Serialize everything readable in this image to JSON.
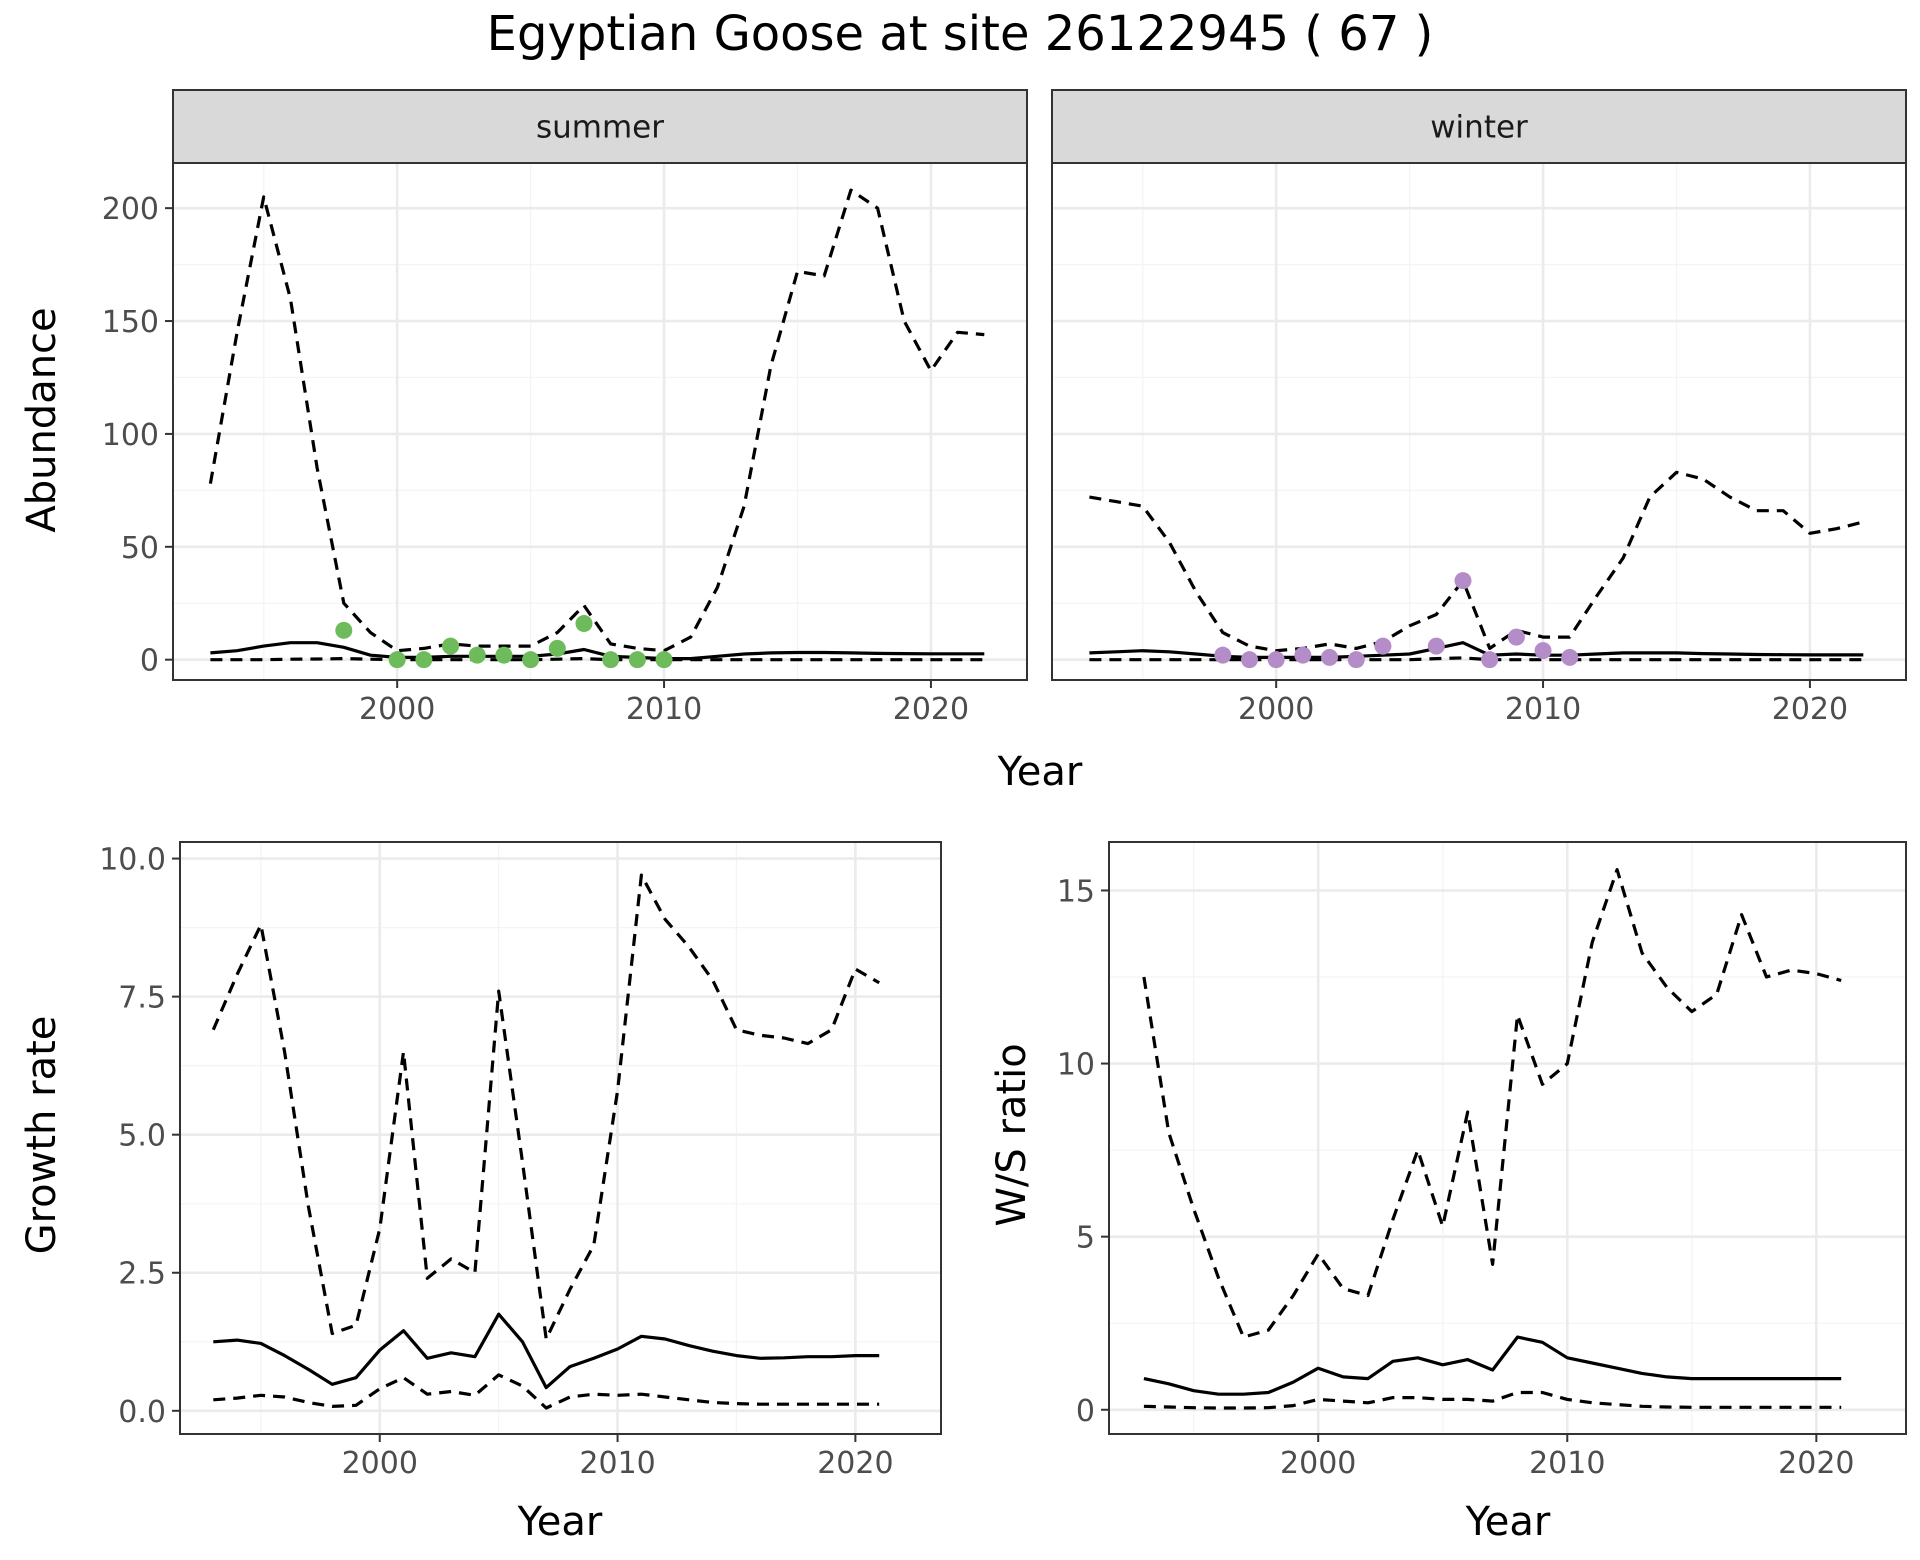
{
  "title": "Egyptian Goose at site 26122945 ( 67 )",
  "colors": {
    "summer_points": "#6dbb5a",
    "winter_points": "#b48cc8",
    "line": "#000000",
    "strip_bg": "#d9d9d9",
    "grid_major": "#ebebeb",
    "grid_minor": "#f4f4f4"
  },
  "chart_data": [
    {
      "type": "line",
      "panel": "summer",
      "facet_label": "summer",
      "xlabel": "Year",
      "ylabel": "Abundance",
      "xlim": [
        1991.6,
        2023.6
      ],
      "ylim": [
        -9,
        220
      ],
      "x_ticks": [
        2000,
        2010,
        2020
      ],
      "y_ticks": [
        0,
        50,
        100,
        150,
        200
      ],
      "grid": true,
      "points": {
        "x": [
          1998,
          2000,
          2001,
          2002,
          2003,
          2004,
          2005,
          2006,
          2007,
          2008,
          2009,
          2010
        ],
        "y": [
          13,
          0,
          0,
          6,
          2,
          2,
          0,
          5,
          16,
          0,
          0,
          0
        ]
      },
      "series": [
        {
          "style": "solid",
          "x": [
            1993,
            1994,
            1995,
            1996,
            1997,
            1998,
            1999,
            2000,
            2001,
            2002,
            2003,
            2004,
            2005,
            2006,
            2007,
            2008,
            2009,
            2010,
            2011,
            2012,
            2013,
            2014,
            2015,
            2016,
            2017,
            2018,
            2019,
            2020,
            2021,
            2022
          ],
          "y": [
            3,
            4,
            6,
            7.5,
            7.5,
            5.5,
            2,
            1,
            1,
            1.5,
            1.5,
            1.5,
            1.5,
            2.5,
            4.5,
            1.5,
            1,
            0.5,
            0.5,
            1.5,
            2.5,
            3,
            3.2,
            3.2,
            3,
            2.8,
            2.7,
            2.6,
            2.6,
            2.6
          ]
        },
        {
          "style": "dashed",
          "x": [
            1993,
            1994,
            1995,
            1996,
            1997,
            1998,
            1999,
            2000,
            2001,
            2002,
            2003,
            2004,
            2005,
            2006,
            2007,
            2008,
            2009,
            2010,
            2011,
            2012,
            2013,
            2014,
            2015,
            2016,
            2017,
            2018,
            2019,
            2020,
            2021,
            2022
          ],
          "y": [
            78,
            145,
            205,
            160,
            85,
            25,
            12,
            4,
            5,
            7,
            6,
            6,
            6,
            12,
            24,
            7,
            5,
            4,
            10,
            32,
            68,
            130,
            172,
            170,
            208,
            200,
            150,
            128,
            145,
            144
          ]
        },
        {
          "style": "dashed",
          "x": [
            1993,
            1994,
            1995,
            1996,
            1997,
            1998,
            1999,
            2000,
            2001,
            2002,
            2003,
            2004,
            2005,
            2006,
            2007,
            2008,
            2009,
            2010,
            2011,
            2012,
            2013,
            2014,
            2015,
            2016,
            2017,
            2018,
            2019,
            2020,
            2021,
            2022
          ],
          "y": [
            0,
            0,
            0,
            0.2,
            0.3,
            0.5,
            0.2,
            0,
            0,
            0,
            0,
            0,
            0,
            0.2,
            0.5,
            0,
            0,
            0,
            0,
            0,
            0,
            0,
            0,
            0,
            0,
            0,
            0,
            0,
            0,
            0
          ]
        }
      ]
    },
    {
      "type": "line",
      "panel": "winter",
      "facet_label": "winter",
      "xlabel": "Year",
      "ylabel": "Abundance",
      "xlim": [
        1991.6,
        2023.6
      ],
      "ylim": [
        -9,
        220
      ],
      "x_ticks": [
        2000,
        2010,
        2020
      ],
      "y_ticks": [
        0,
        50,
        100,
        150,
        200
      ],
      "grid": true,
      "points": {
        "x": [
          1998,
          1999,
          2000,
          2001,
          2002,
          2003,
          2004,
          2006,
          2007,
          2008,
          2009,
          2010,
          2011
        ],
        "y": [
          2,
          0,
          0,
          2,
          1,
          0,
          6,
          6,
          35,
          0,
          10,
          4,
          1
        ]
      },
      "series": [
        {
          "style": "solid",
          "x": [
            1993,
            1994,
            1995,
            1996,
            1997,
            1998,
            1999,
            2000,
            2001,
            2002,
            2003,
            2004,
            2005,
            2006,
            2007,
            2008,
            2009,
            2010,
            2011,
            2012,
            2013,
            2014,
            2015,
            2016,
            2017,
            2018,
            2019,
            2020,
            2021,
            2022
          ],
          "y": [
            3,
            3.5,
            4,
            3.5,
            2.5,
            1.5,
            1,
            1,
            1,
            1,
            1.5,
            2,
            2.5,
            5,
            7.5,
            2,
            2.5,
            2,
            2,
            2.5,
            3,
            3,
            3,
            2.7,
            2.5,
            2.3,
            2.2,
            2.1,
            2.1,
            2.1
          ]
        },
        {
          "style": "dashed",
          "x": [
            1993,
            1994,
            1995,
            1996,
            1997,
            1998,
            1999,
            2000,
            2001,
            2002,
            2003,
            2004,
            2005,
            2006,
            2007,
            2008,
            2009,
            2010,
            2011,
            2012,
            2013,
            2014,
            2015,
            2016,
            2017,
            2018,
            2019,
            2020,
            2021,
            2022
          ],
          "y": [
            72,
            70,
            68,
            52,
            30,
            12,
            6,
            4,
            5,
            7,
            5,
            8,
            15,
            20,
            35,
            5,
            13,
            10,
            10,
            28,
            45,
            72,
            83,
            80,
            72,
            66,
            66,
            56,
            58,
            61
          ]
        },
        {
          "style": "dashed",
          "x": [
            1993,
            1994,
            1995,
            1996,
            1997,
            1998,
            1999,
            2000,
            2001,
            2002,
            2003,
            2004,
            2005,
            2006,
            2007,
            2008,
            2009,
            2010,
            2011,
            2012,
            2013,
            2014,
            2015,
            2016,
            2017,
            2018,
            2019,
            2020,
            2021,
            2022
          ],
          "y": [
            0,
            0,
            0,
            0,
            0,
            0,
            0,
            0,
            0,
            0,
            0,
            0,
            0,
            0.5,
            0.8,
            0,
            0,
            0,
            0,
            0,
            0,
            0,
            0,
            0,
            0,
            0,
            0,
            0,
            0,
            0
          ]
        }
      ]
    },
    {
      "type": "line",
      "panel": "growth",
      "xlabel": "Year",
      "ylabel": "Growth rate",
      "xlim": [
        1991.6,
        2023.6
      ],
      "ylim": [
        -0.42,
        10.3
      ],
      "x_ticks": [
        2000,
        2010,
        2020
      ],
      "y_ticks": [
        0.0,
        2.5,
        5.0,
        7.5,
        10.0
      ],
      "y_tick_labels": [
        "0.0",
        "2.5",
        "5.0",
        "7.5",
        "10.0"
      ],
      "grid": true,
      "series": [
        {
          "style": "solid",
          "x": [
            1993,
            1994,
            1995,
            1996,
            1997,
            1998,
            1999,
            2000,
            2001,
            2002,
            2003,
            2004,
            2005,
            2006,
            2007,
            2008,
            2009,
            2010,
            2011,
            2012,
            2013,
            2014,
            2015,
            2016,
            2017,
            2018,
            2019,
            2020,
            2021
          ],
          "y": [
            1.25,
            1.28,
            1.22,
            1.0,
            0.75,
            0.48,
            0.6,
            1.1,
            1.45,
            0.95,
            1.05,
            0.98,
            1.75,
            1.25,
            0.42,
            0.8,
            0.95,
            1.12,
            1.35,
            1.3,
            1.18,
            1.08,
            1.0,
            0.95,
            0.96,
            0.98,
            0.98,
            1.0,
            1.0
          ]
        },
        {
          "style": "dashed",
          "x": [
            1993,
            1994,
            1995,
            1996,
            1997,
            1998,
            1999,
            2000,
            2001,
            2002,
            2003,
            2004,
            2005,
            2006,
            2007,
            2008,
            2009,
            2010,
            2011,
            2012,
            2013,
            2014,
            2015,
            2016,
            2017,
            2018,
            2019,
            2020,
            2021
          ],
          "y": [
            6.9,
            7.9,
            8.8,
            6.5,
            3.7,
            1.4,
            1.55,
            3.3,
            6.5,
            2.4,
            2.75,
            2.5,
            7.6,
            4.5,
            1.3,
            2.2,
            3.0,
            5.8,
            9.7,
            8.9,
            8.4,
            7.8,
            6.9,
            6.8,
            6.75,
            6.65,
            6.9,
            8.0,
            7.75
          ]
        },
        {
          "style": "dashed",
          "x": [
            1993,
            1994,
            1995,
            1996,
            1997,
            1998,
            1999,
            2000,
            2001,
            2002,
            2003,
            2004,
            2005,
            2006,
            2007,
            2008,
            2009,
            2010,
            2011,
            2012,
            2013,
            2014,
            2015,
            2016,
            2017,
            2018,
            2019,
            2020,
            2021
          ],
          "y": [
            0.2,
            0.23,
            0.28,
            0.25,
            0.15,
            0.08,
            0.1,
            0.4,
            0.6,
            0.3,
            0.35,
            0.28,
            0.65,
            0.45,
            0.05,
            0.25,
            0.3,
            0.28,
            0.3,
            0.25,
            0.2,
            0.15,
            0.13,
            0.12,
            0.12,
            0.12,
            0.12,
            0.12,
            0.12
          ]
        }
      ]
    },
    {
      "type": "line",
      "panel": "ratio",
      "xlabel": "Year",
      "ylabel": "W/S ratio",
      "xlim": [
        1991.6,
        2023.6
      ],
      "ylim": [
        -0.7,
        16.4
      ],
      "x_ticks": [
        2000,
        2010,
        2020
      ],
      "y_ticks": [
        0,
        5,
        10,
        15
      ],
      "grid": true,
      "series": [
        {
          "style": "solid",
          "x": [
            1993,
            1994,
            1995,
            1996,
            1997,
            1998,
            1999,
            2000,
            2001,
            2002,
            2003,
            2004,
            2005,
            2006,
            2007,
            2008,
            2009,
            2010,
            2011,
            2012,
            2013,
            2014,
            2015,
            2016,
            2017,
            2018,
            2019,
            2020,
            2021
          ],
          "y": [
            0.9,
            0.75,
            0.55,
            0.45,
            0.45,
            0.5,
            0.8,
            1.2,
            0.95,
            0.9,
            1.4,
            1.5,
            1.3,
            1.45,
            1.15,
            2.1,
            1.95,
            1.5,
            1.35,
            1.2,
            1.05,
            0.95,
            0.9,
            0.9,
            0.9,
            0.9,
            0.9,
            0.9,
            0.9
          ]
        },
        {
          "style": "dashed",
          "x": [
            1993,
            1994,
            1995,
            1996,
            1997,
            1998,
            1999,
            2000,
            2001,
            2002,
            2003,
            2004,
            2005,
            2006,
            2007,
            2008,
            2009,
            2010,
            2011,
            2012,
            2013,
            2014,
            2015,
            2016,
            2017,
            2018,
            2019,
            2020,
            2021
          ],
          "y": [
            12.5,
            8.0,
            5.8,
            3.8,
            2.1,
            2.3,
            3.3,
            4.5,
            3.5,
            3.3,
            5.5,
            7.5,
            5.3,
            8.6,
            4.2,
            11.4,
            9.4,
            10.0,
            13.5,
            15.6,
            13.2,
            12.2,
            11.5,
            12.0,
            14.3,
            12.5,
            12.7,
            12.6,
            12.4
          ]
        },
        {
          "style": "dashed",
          "x": [
            1993,
            1994,
            1995,
            1996,
            1997,
            1998,
            1999,
            2000,
            2001,
            2002,
            2003,
            2004,
            2005,
            2006,
            2007,
            2008,
            2009,
            2010,
            2011,
            2012,
            2013,
            2014,
            2015,
            2016,
            2017,
            2018,
            2019,
            2020,
            2021
          ],
          "y": [
            0.1,
            0.08,
            0.06,
            0.05,
            0.05,
            0.06,
            0.12,
            0.3,
            0.25,
            0.2,
            0.35,
            0.35,
            0.3,
            0.3,
            0.25,
            0.5,
            0.5,
            0.3,
            0.2,
            0.15,
            0.1,
            0.08,
            0.07,
            0.07,
            0.07,
            0.07,
            0.07,
            0.07,
            0.07
          ]
        }
      ]
    }
  ]
}
